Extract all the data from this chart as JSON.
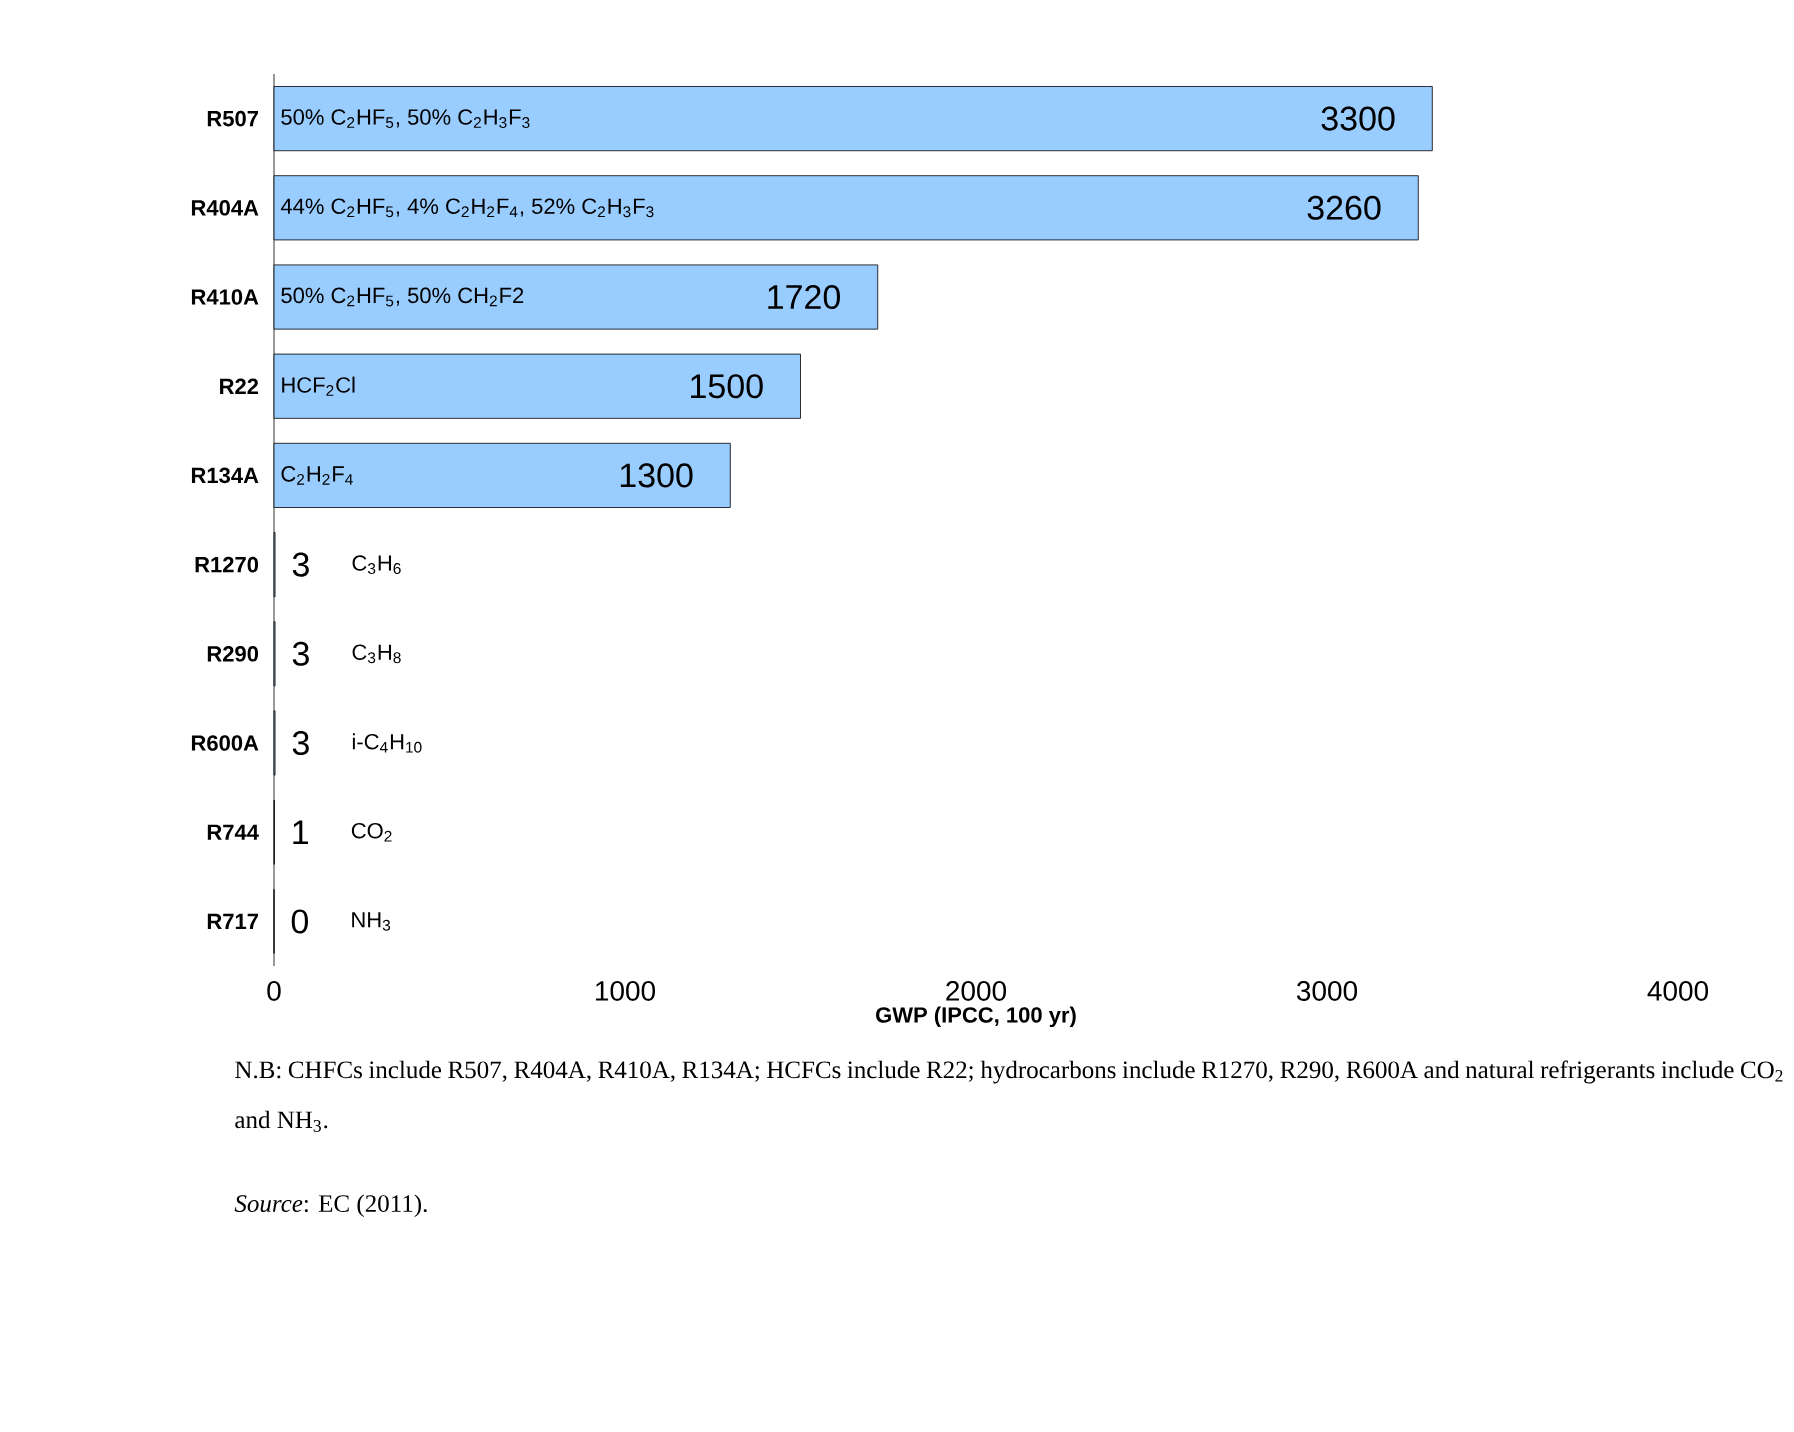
{
  "chart_data": {
    "type": "bar",
    "orientation": "horizontal",
    "categories": [
      "R507",
      "R404A",
      "R410A",
      "R22",
      "R134A",
      "R1270",
      "R290",
      "R600A",
      "R744",
      "R717"
    ],
    "values": [
      3300,
      3260,
      1720,
      1500,
      1300,
      3,
      3,
      3,
      1,
      0
    ],
    "color": "#99ccff",
    "data_labels": true,
    "xlim": [
      0,
      4000
    ],
    "xticks": [
      0,
      1000,
      2000,
      3000,
      4000
    ],
    "xlabel": "GWP (IPCC, 100 yr)",
    "grid": false,
    "annotations": [
      "50% C$_{2}$HF$_{5}$, 50% C$_{2}$H$_{3}$F$_{3}$",
      "44% C$_{2}$HF$_{5}$, 4% C$_{2}$H$_{2}$F$_{4}$, 52% C$_{2}$H$_{3}$F$_{3}$",
      "50% C$_{2}$HF$_{5}$, 50% CH$_{2}$F2",
      "HCF$_{2}$Cl",
      "C$_{2}$H$_{2}$F$_{4}$",
      "C$_{3}$H$_{6}$",
      "C$_{3}$H$_{8}$",
      "i-C$_{4}$H$_{10}$",
      "CO$_{2}$",
      "NH$_{3}$",
      "N.B: CHFCs include R507, R404A, R410A, R134A; HCFCs include R22; hydrocarbons include R1270, R290, R600A and natural refrigerants include CO$_{2}$ and NH$_{3}$.",
      "*Source*: EC (2011)."
    ]
  }
}
